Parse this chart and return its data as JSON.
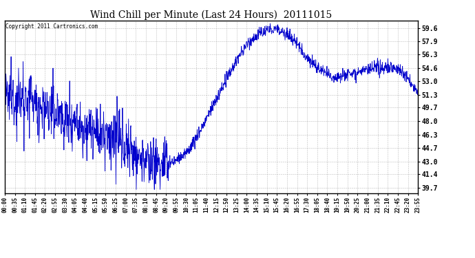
{
  "title": "Wind Chill per Minute (Last 24 Hours)  20111015",
  "copyright_text": "Copyright 2011 Cartronics.com",
  "line_color": "#0000cc",
  "background_color": "#ffffff",
  "plot_bg_color": "#ffffff",
  "grid_color": "#aaaaaa",
  "yticks": [
    39.7,
    41.4,
    43.0,
    44.7,
    46.3,
    48.0,
    49.7,
    51.3,
    53.0,
    54.6,
    56.3,
    57.9,
    59.6
  ],
  "ylim": [
    39.0,
    60.5
  ],
  "xtick_labels": [
    "00:00",
    "00:35",
    "01:10",
    "01:45",
    "02:20",
    "02:55",
    "03:30",
    "04:05",
    "04:40",
    "05:15",
    "05:50",
    "06:25",
    "07:00",
    "07:35",
    "08:10",
    "08:45",
    "09:20",
    "09:55",
    "10:30",
    "11:05",
    "11:40",
    "12:15",
    "12:50",
    "13:25",
    "14:00",
    "14:35",
    "15:10",
    "15:45",
    "16:20",
    "16:55",
    "17:30",
    "18:05",
    "18:40",
    "19:15",
    "19:50",
    "20:25",
    "21:00",
    "21:35",
    "22:10",
    "22:45",
    "23:20",
    "23:55"
  ],
  "num_points": 1440,
  "figwidth": 6.9,
  "figheight": 3.75,
  "dpi": 100
}
